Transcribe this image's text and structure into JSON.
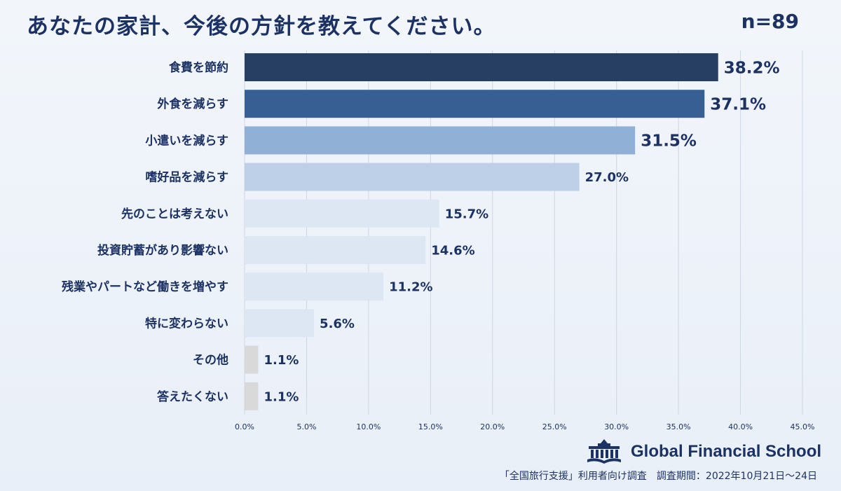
{
  "title": "あなたの家計、今後の方針を教えてください。",
  "sample_size": "n=89",
  "brand": {
    "name": "Global Financial School",
    "logo_icon": "school-building-icon"
  },
  "source_note": "「全国旅行支援」利用者向け調査　調査期間：2022年10月21日～24日",
  "chart_data": {
    "type": "bar",
    "orientation": "horizontal",
    "title": "あなたの家計、今後の方針を教えてください。",
    "xlabel": "",
    "ylabel": "",
    "xlim": [
      0,
      45
    ],
    "x_ticks": [
      "0.0%",
      "5.0%",
      "10.0%",
      "15.0%",
      "20.0%",
      "25.0%",
      "30.0%",
      "35.0%",
      "40.0%",
      "45.0%"
    ],
    "x_tick_values": [
      0,
      5,
      10,
      15,
      20,
      25,
      30,
      35,
      40,
      45
    ],
    "grid": true,
    "legend": "none",
    "categories": [
      "食費を節約",
      "外食を減らす",
      "小遣いを減らす",
      "嗜好品を減らす",
      "先のことは考えない",
      "投資貯蓄があり影響ない",
      "残業やパートなど働きを増やす",
      "特に変わらない",
      "その他",
      "答えたくない"
    ],
    "values": [
      38.2,
      37.1,
      31.5,
      27.0,
      15.7,
      14.6,
      11.2,
      5.6,
      1.1,
      1.1
    ],
    "value_labels": [
      "38.2%",
      "37.1%",
      "31.5%",
      "27.0%",
      "15.7%",
      "14.6%",
      "11.2%",
      "5.6%",
      "1.1%",
      "1.1%"
    ],
    "colors": [
      "#263f62",
      "#375f94",
      "#91b0d6",
      "#bdd0e8",
      "#dde7f3",
      "#dde7f3",
      "#dde7f3",
      "#dde7f3",
      "#d9d9d9",
      "#d9d9d9"
    ]
  }
}
